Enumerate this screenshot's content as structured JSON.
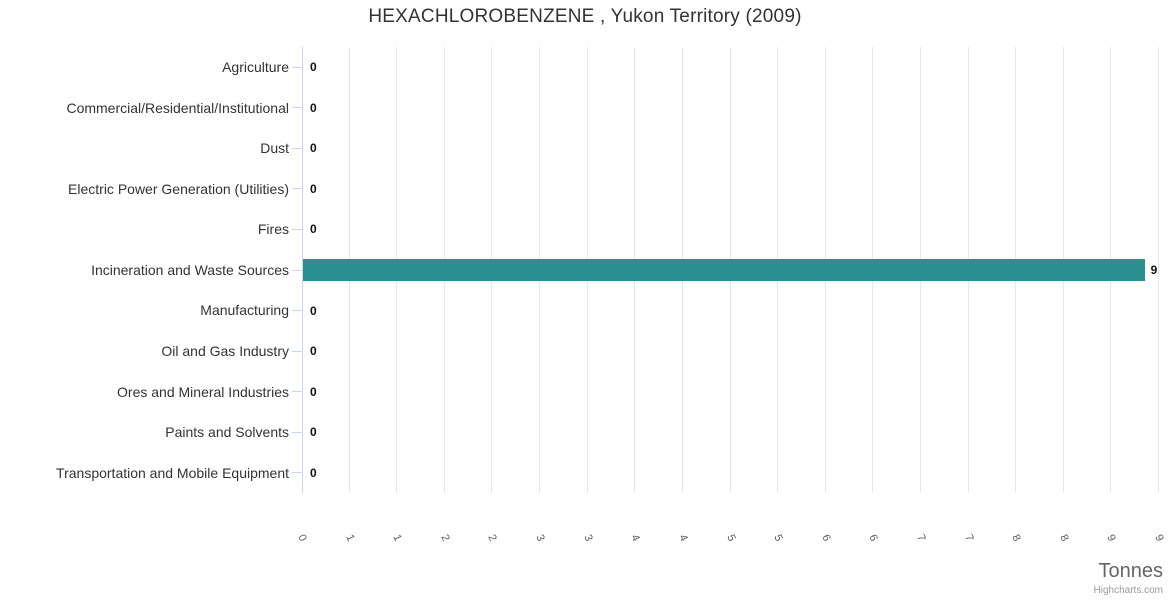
{
  "chart_data": {
    "type": "bar",
    "orientation": "horizontal",
    "title": "HEXACHLOROBENZENE , Yukon Territory (2009)",
    "categories": [
      "Agriculture",
      "Commercial/Residential/Institutional",
      "Dust",
      "Electric Power Generation (Utilities)",
      "Fires",
      "Incineration and Waste Sources",
      "Manufacturing",
      "Oil and Gas Industry",
      "Ores and Mineral Industries",
      "Paints and Solvents",
      "Transportation and Mobile Equipment"
    ],
    "values": [
      0,
      0,
      0,
      0,
      0,
      9,
      0,
      0,
      0,
      0,
      0
    ],
    "data_labels": [
      "0",
      "0",
      "0",
      "0",
      "0",
      "9",
      "0",
      "0",
      "0",
      "0",
      "0"
    ],
    "xlabel": "Tonnes",
    "xlim": [
      0,
      9
    ],
    "x_tick_values": [
      0,
      0.5,
      1,
      1.5,
      2,
      2.5,
      3,
      3.5,
      4,
      4.5,
      5,
      5.5,
      6,
      6.5,
      7,
      7.5,
      8,
      8.5,
      9
    ],
    "x_tick_labels": [
      "0",
      "1",
      "1",
      "2",
      "2",
      "3",
      "3",
      "4",
      "4",
      "5",
      "5",
      "6",
      "6",
      "7",
      "7",
      "8",
      "8",
      "9",
      "9"
    ],
    "grid": true,
    "legend": false,
    "colors": {
      "bar": "#2b908f",
      "grid": "#e6e6e6",
      "axis_line": "#ccd6eb"
    }
  },
  "credits": "Highcharts.com"
}
